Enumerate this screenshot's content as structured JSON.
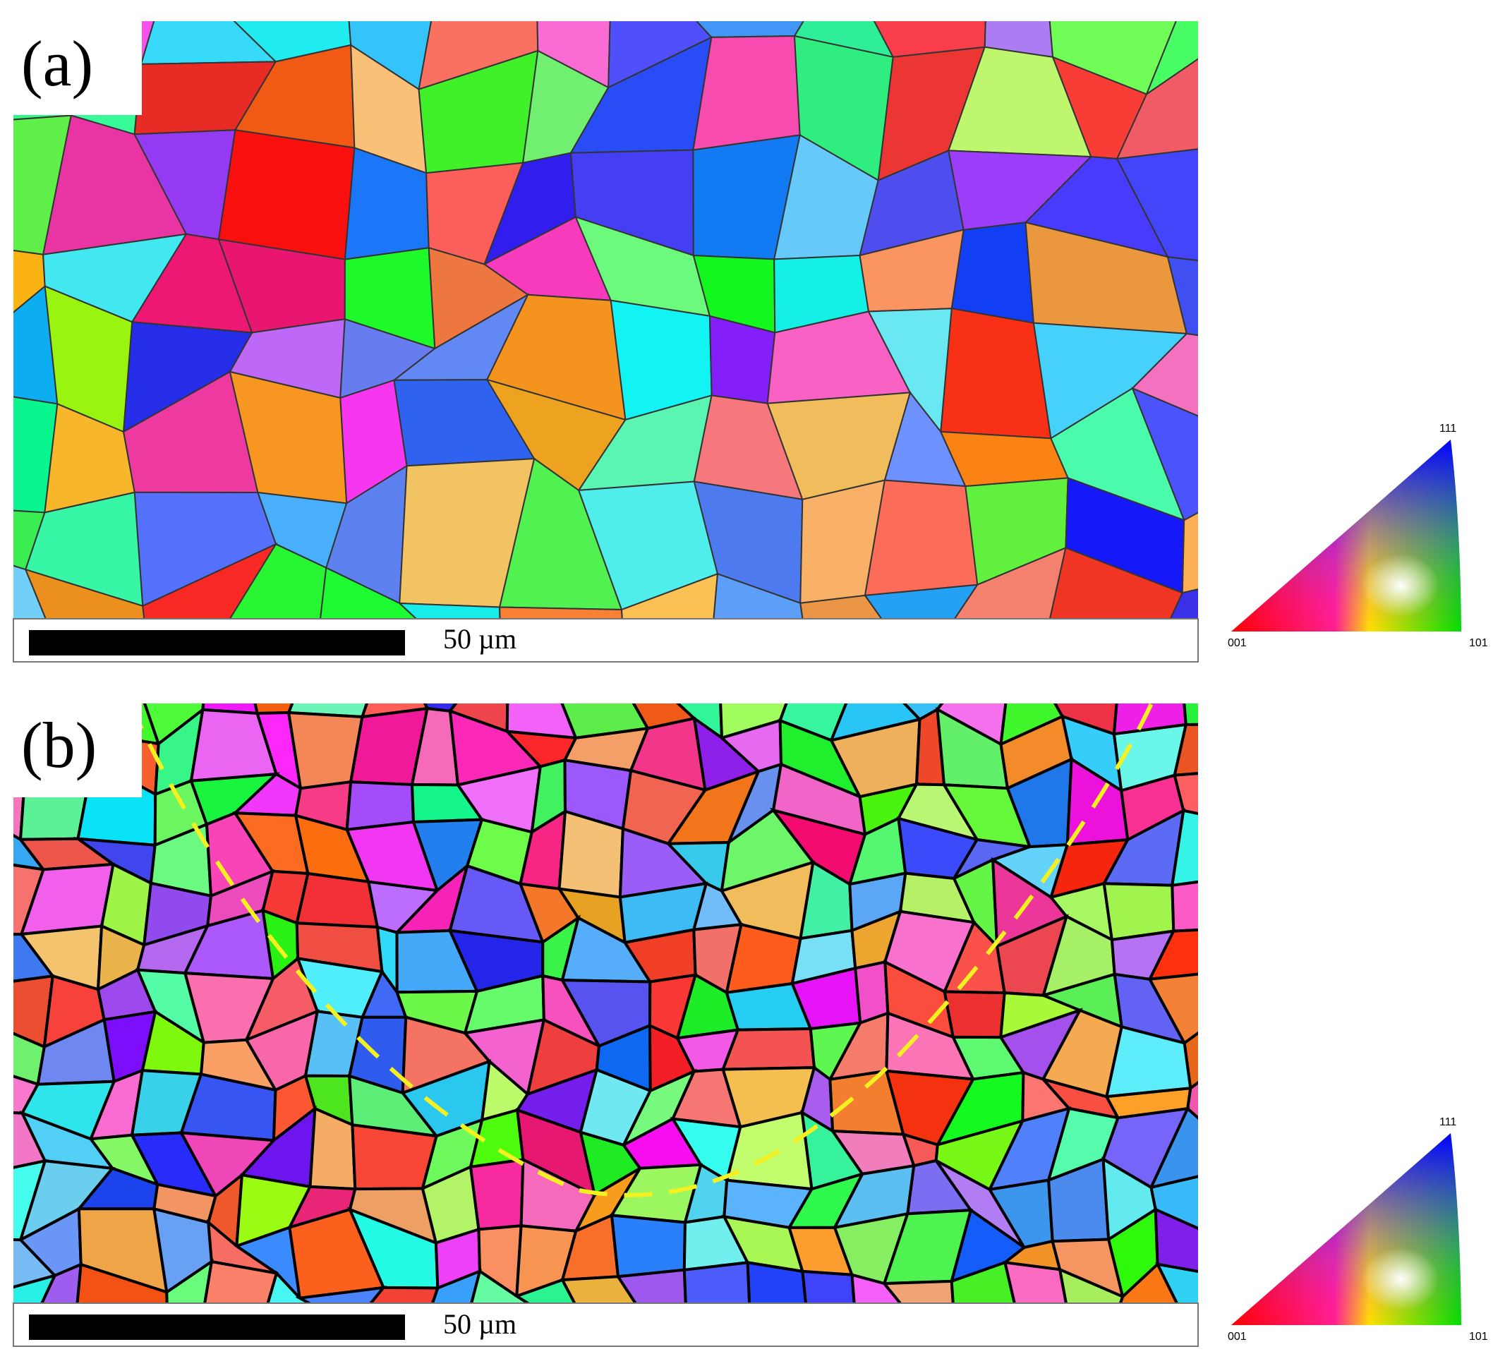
{
  "panels": [
    {
      "label": "(a)",
      "scale_bar": "50 µm",
      "legend": {
        "top": "111",
        "left": "001",
        "right": "101"
      }
    },
    {
      "label": "(b)",
      "scale_bar": "50 µm",
      "legend": {
        "top": "111",
        "left": "001",
        "right": "101"
      }
    }
  ]
}
